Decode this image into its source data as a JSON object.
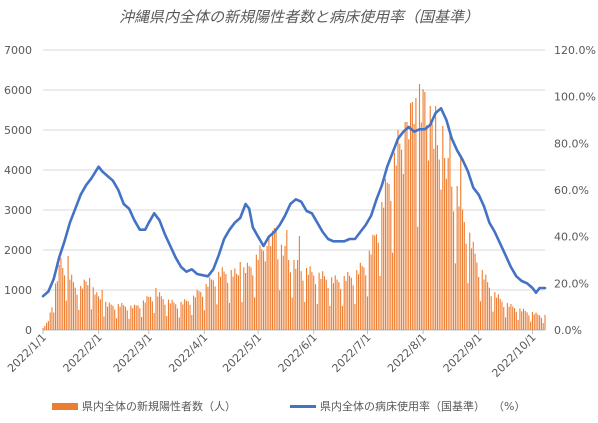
{
  "title": "沖縄県内全体の新規陽性者数と病床使用率（国基準）",
  "colors": {
    "bars": "#ED7D31",
    "line": "#4472C4",
    "grid": "#D9D9D9",
    "text": "#595959"
  },
  "chart_data": {
    "type": "bar",
    "title": "沖縄県内全体の新規陽性者数と病床使用率（国基準）",
    "grid": true,
    "legend_position": "bottom",
    "x_range": [
      "2022-01-01",
      "2022-10-08"
    ],
    "y_left": {
      "ylim": [
        0,
        7000
      ],
      "ticks": [
        "0",
        "1000",
        "2000",
        "3000",
        "4000",
        "5000",
        "6000",
        "7000"
      ]
    },
    "y_right": {
      "ylim": [
        0,
        120
      ],
      "ticks": [
        "0.0%",
        "20.0%",
        "40.0%",
        "60.0%",
        "80.0%",
        "100.0%",
        "120.0%"
      ]
    },
    "x_ticks": [
      "2022/1/1",
      "2022/2/1",
      "2022/3/1",
      "2022/4/1",
      "2022/5/1",
      "2022/6/1",
      "2022/7/1",
      "2022/8/1",
      "2022/9/1",
      "2022/10/1"
    ],
    "x_tick_dates": [
      "2022-01-01",
      "2022-02-01",
      "2022-03-01",
      "2022-04-01",
      "2022-05-01",
      "2022-06-01",
      "2022-07-01",
      "2022-08-01",
      "2022-09-01",
      "2022-10-01"
    ],
    "series": [
      {
        "name": "県内全体の新規陽性者数（人）",
        "kind": "bar",
        "axis": "left",
        "points": [
          [
            "2022-01-01",
            50
          ],
          [
            "2022-01-04",
            230
          ],
          [
            "2022-01-07",
            970
          ],
          [
            "2022-01-10",
            1550
          ],
          [
            "2022-01-13",
            1750
          ],
          [
            "2022-01-16",
            1400
          ],
          [
            "2022-01-19",
            1150
          ],
          [
            "2022-01-22",
            1100
          ],
          [
            "2022-01-25",
            1250
          ],
          [
            "2022-01-28",
            1150
          ],
          [
            "2022-01-31",
            900
          ],
          [
            "2022-02-03",
            800
          ],
          [
            "2022-02-06",
            650
          ],
          [
            "2022-02-09",
            660
          ],
          [
            "2022-02-12",
            650
          ],
          [
            "2022-02-15",
            640
          ],
          [
            "2022-02-18",
            620
          ],
          [
            "2022-02-21",
            600
          ],
          [
            "2022-02-24",
            700
          ],
          [
            "2022-02-27",
            760
          ],
          [
            "2022-03-02",
            900
          ],
          [
            "2022-03-05",
            960
          ],
          [
            "2022-03-08",
            870
          ],
          [
            "2022-03-11",
            780
          ],
          [
            "2022-03-14",
            720
          ],
          [
            "2022-03-17",
            690
          ],
          [
            "2022-03-20",
            710
          ],
          [
            "2022-03-23",
            780
          ],
          [
            "2022-03-26",
            860
          ],
          [
            "2022-03-29",
            1000
          ],
          [
            "2022-04-01",
            1100
          ],
          [
            "2022-04-04",
            1250
          ],
          [
            "2022-04-07",
            1400
          ],
          [
            "2022-04-10",
            1480
          ],
          [
            "2022-04-13",
            1520
          ],
          [
            "2022-04-16",
            1500
          ],
          [
            "2022-04-19",
            1450
          ],
          [
            "2022-04-22",
            1550
          ],
          [
            "2022-04-25",
            1600
          ],
          [
            "2022-04-28",
            1750
          ],
          [
            "2022-05-01",
            1950
          ],
          [
            "2022-05-04",
            2150
          ],
          [
            "2022-05-07",
            2300
          ],
          [
            "2022-05-10",
            2400
          ],
          [
            "2022-05-13",
            2200
          ],
          [
            "2022-05-16",
            2000
          ],
          [
            "2022-05-19",
            1850
          ],
          [
            "2022-05-22",
            1700
          ],
          [
            "2022-05-25",
            1600
          ],
          [
            "2022-05-28",
            1550
          ],
          [
            "2022-05-31",
            1500
          ],
          [
            "2022-06-03",
            1450
          ],
          [
            "2022-06-06",
            1400
          ],
          [
            "2022-06-09",
            1350
          ],
          [
            "2022-06-12",
            1300
          ],
          [
            "2022-06-15",
            1300
          ],
          [
            "2022-06-18",
            1350
          ],
          [
            "2022-06-21",
            1400
          ],
          [
            "2022-06-24",
            1450
          ],
          [
            "2022-06-27",
            1600
          ],
          [
            "2022-06-30",
            1750
          ],
          [
            "2022-07-03",
            2100
          ],
          [
            "2022-07-06",
            2600
          ],
          [
            "2022-07-09",
            3200
          ],
          [
            "2022-07-12",
            3800
          ],
          [
            "2022-07-15",
            4300
          ],
          [
            "2022-07-18",
            4700
          ],
          [
            "2022-07-21",
            5000
          ],
          [
            "2022-07-24",
            5300
          ],
          [
            "2022-07-27",
            5600
          ],
          [
            "2022-07-30",
            5800
          ],
          [
            "2022-08-02",
            5700
          ],
          [
            "2022-08-05",
            5300
          ],
          [
            "2022-08-08",
            4900
          ],
          [
            "2022-08-11",
            4500
          ],
          [
            "2022-08-14",
            4200
          ],
          [
            "2022-08-17",
            3900
          ],
          [
            "2022-08-20",
            3600
          ],
          [
            "2022-08-23",
            3100
          ],
          [
            "2022-08-26",
            2600
          ],
          [
            "2022-08-29",
            2100
          ],
          [
            "2022-09-01",
            1700
          ],
          [
            "2022-09-04",
            1400
          ],
          [
            "2022-09-07",
            1150
          ],
          [
            "2022-09-10",
            950
          ],
          [
            "2022-09-13",
            800
          ],
          [
            "2022-09-16",
            700
          ],
          [
            "2022-09-19",
            620
          ],
          [
            "2022-09-22",
            580
          ],
          [
            "2022-09-25",
            520
          ],
          [
            "2022-09-28",
            480
          ],
          [
            "2022-10-01",
            450
          ],
          [
            "2022-10-04",
            400
          ],
          [
            "2022-10-08",
            380
          ]
        ],
        "spikes": [
          [
            "2022-01-11",
            1800
          ],
          [
            "2022-01-15",
            1850
          ],
          [
            "2022-01-27",
            1300
          ],
          [
            "2022-02-03",
            1000
          ],
          [
            "2022-03-05",
            1050
          ],
          [
            "2022-04-21",
            1700
          ],
          [
            "2022-05-06",
            2100
          ],
          [
            "2022-05-10",
            2550
          ],
          [
            "2022-05-11",
            2500
          ],
          [
            "2022-05-17",
            2500
          ],
          [
            "2022-05-24",
            2350
          ],
          [
            "2022-07-18",
            5000
          ],
          [
            "2022-07-22",
            5200
          ],
          [
            "2022-07-26",
            5700
          ],
          [
            "2022-07-28",
            5800
          ],
          [
            "2022-07-30",
            6150
          ],
          [
            "2022-08-02",
            5950
          ],
          [
            "2022-08-05",
            5600
          ],
          [
            "2022-08-08",
            5600
          ],
          [
            "2022-08-12",
            5100
          ],
          [
            "2022-08-16",
            4900
          ],
          [
            "2022-08-22",
            4300
          ]
        ]
      },
      {
        "name": "県内全体の病床使用率（国基準）",
        "kind": "line",
        "axis": "right",
        "unit": "（%）",
        "points": [
          [
            "2022-01-01",
            14.5
          ],
          [
            "2022-01-04",
            16.5
          ],
          [
            "2022-01-07",
            22
          ],
          [
            "2022-01-10",
            31
          ],
          [
            "2022-01-13",
            38
          ],
          [
            "2022-01-16",
            46
          ],
          [
            "2022-01-19",
            52
          ],
          [
            "2022-01-22",
            58
          ],
          [
            "2022-01-25",
            62
          ],
          [
            "2022-01-28",
            65
          ],
          [
            "2022-02-01",
            70
          ],
          [
            "2022-02-03",
            68
          ],
          [
            "2022-02-06",
            66
          ],
          [
            "2022-02-09",
            64
          ],
          [
            "2022-02-12",
            60
          ],
          [
            "2022-02-15",
            54
          ],
          [
            "2022-02-18",
            52
          ],
          [
            "2022-02-21",
            47
          ],
          [
            "2022-02-24",
            43
          ],
          [
            "2022-02-27",
            43
          ],
          [
            "2022-03-01",
            46
          ],
          [
            "2022-03-04",
            50
          ],
          [
            "2022-03-07",
            47
          ],
          [
            "2022-03-10",
            41
          ],
          [
            "2022-03-13",
            36
          ],
          [
            "2022-03-16",
            31
          ],
          [
            "2022-03-19",
            27
          ],
          [
            "2022-03-22",
            25
          ],
          [
            "2022-03-25",
            26
          ],
          [
            "2022-03-28",
            24
          ],
          [
            "2022-03-31",
            23.5
          ],
          [
            "2022-04-03",
            23
          ],
          [
            "2022-04-06",
            26
          ],
          [
            "2022-04-09",
            32
          ],
          [
            "2022-04-12",
            39
          ],
          [
            "2022-04-15",
            43
          ],
          [
            "2022-04-18",
            46
          ],
          [
            "2022-04-21",
            48
          ],
          [
            "2022-04-24",
            54
          ],
          [
            "2022-04-26",
            52
          ],
          [
            "2022-04-28",
            44
          ],
          [
            "2022-05-01",
            40
          ],
          [
            "2022-05-04",
            36
          ],
          [
            "2022-05-07",
            40
          ],
          [
            "2022-05-10",
            42
          ],
          [
            "2022-05-13",
            45
          ],
          [
            "2022-05-16",
            49
          ],
          [
            "2022-05-19",
            54
          ],
          [
            "2022-05-22",
            56
          ],
          [
            "2022-05-25",
            55
          ],
          [
            "2022-05-28",
            51
          ],
          [
            "2022-05-31",
            50
          ],
          [
            "2022-06-03",
            46
          ],
          [
            "2022-06-06",
            42
          ],
          [
            "2022-06-09",
            39
          ],
          [
            "2022-06-12",
            38
          ],
          [
            "2022-06-15",
            38
          ],
          [
            "2022-06-18",
            38
          ],
          [
            "2022-06-21",
            39
          ],
          [
            "2022-06-24",
            39
          ],
          [
            "2022-06-27",
            42
          ],
          [
            "2022-06-30",
            45
          ],
          [
            "2022-07-03",
            49
          ],
          [
            "2022-07-06",
            56
          ],
          [
            "2022-07-09",
            62
          ],
          [
            "2022-07-12",
            70
          ],
          [
            "2022-07-15",
            76
          ],
          [
            "2022-07-18",
            82
          ],
          [
            "2022-07-21",
            85
          ],
          [
            "2022-07-24",
            87
          ],
          [
            "2022-07-27",
            85
          ],
          [
            "2022-07-30",
            86
          ],
          [
            "2022-08-02",
            86
          ],
          [
            "2022-08-05",
            88
          ],
          [
            "2022-08-08",
            93
          ],
          [
            "2022-08-11",
            95
          ],
          [
            "2022-08-14",
            90
          ],
          [
            "2022-08-17",
            82
          ],
          [
            "2022-08-20",
            77
          ],
          [
            "2022-08-23",
            73
          ],
          [
            "2022-08-26",
            68
          ],
          [
            "2022-08-29",
            61
          ],
          [
            "2022-09-01",
            58
          ],
          [
            "2022-09-04",
            53
          ],
          [
            "2022-09-07",
            46
          ],
          [
            "2022-09-10",
            42
          ],
          [
            "2022-09-13",
            37
          ],
          [
            "2022-09-16",
            32
          ],
          [
            "2022-09-19",
            27
          ],
          [
            "2022-09-22",
            23
          ],
          [
            "2022-09-25",
            21
          ],
          [
            "2022-09-28",
            20
          ],
          [
            "2022-10-01",
            18
          ],
          [
            "2022-10-03",
            16
          ],
          [
            "2022-10-05",
            18
          ],
          [
            "2022-10-08",
            18
          ]
        ]
      }
    ]
  }
}
